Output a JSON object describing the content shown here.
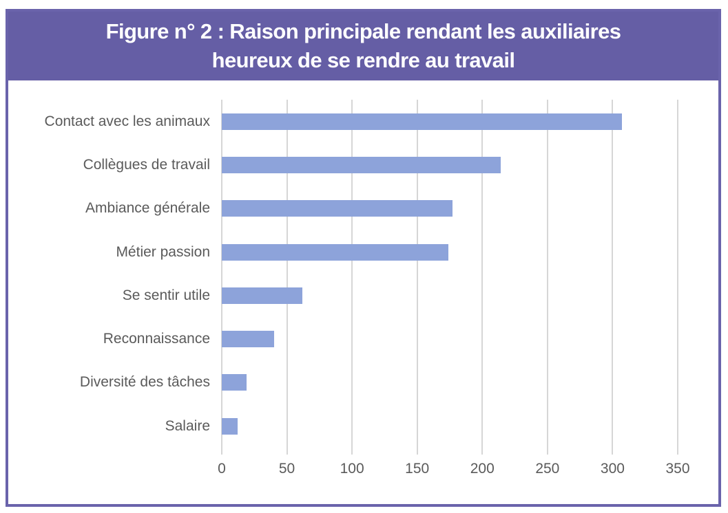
{
  "header": {
    "title_line1": "Figure n° 2 : Raison principale rendant les auxiliaires",
    "title_line2": "heureux de se rendre au travail"
  },
  "chart_data": {
    "type": "bar",
    "orientation": "horizontal",
    "title": "Figure n° 2 : Raison principale rendant les auxiliaires heureux de se rendre au travail",
    "categories": [
      "Contact avec les animaux",
      "Collègues de travail",
      "Ambiance générale",
      "Métier passion",
      "Se sentir utile",
      "Reconnaissance",
      "Diversité des tâches",
      "Salaire"
    ],
    "values": [
      307,
      214,
      177,
      174,
      62,
      40,
      19,
      12
    ],
    "x_ticks": [
      0,
      50,
      100,
      150,
      200,
      250,
      300,
      350
    ],
    "xlim": [
      0,
      350
    ],
    "xlabel": "",
    "ylabel": "",
    "grid": true,
    "legend": "none"
  },
  "colors": {
    "header_bg": "#655EA5",
    "frame_border": "#6A63AB",
    "title_text": "#FFFFFF",
    "bar": "#8DA3DA",
    "gridline": "#D6D6D6",
    "label_text": "#5A5A5A"
  }
}
